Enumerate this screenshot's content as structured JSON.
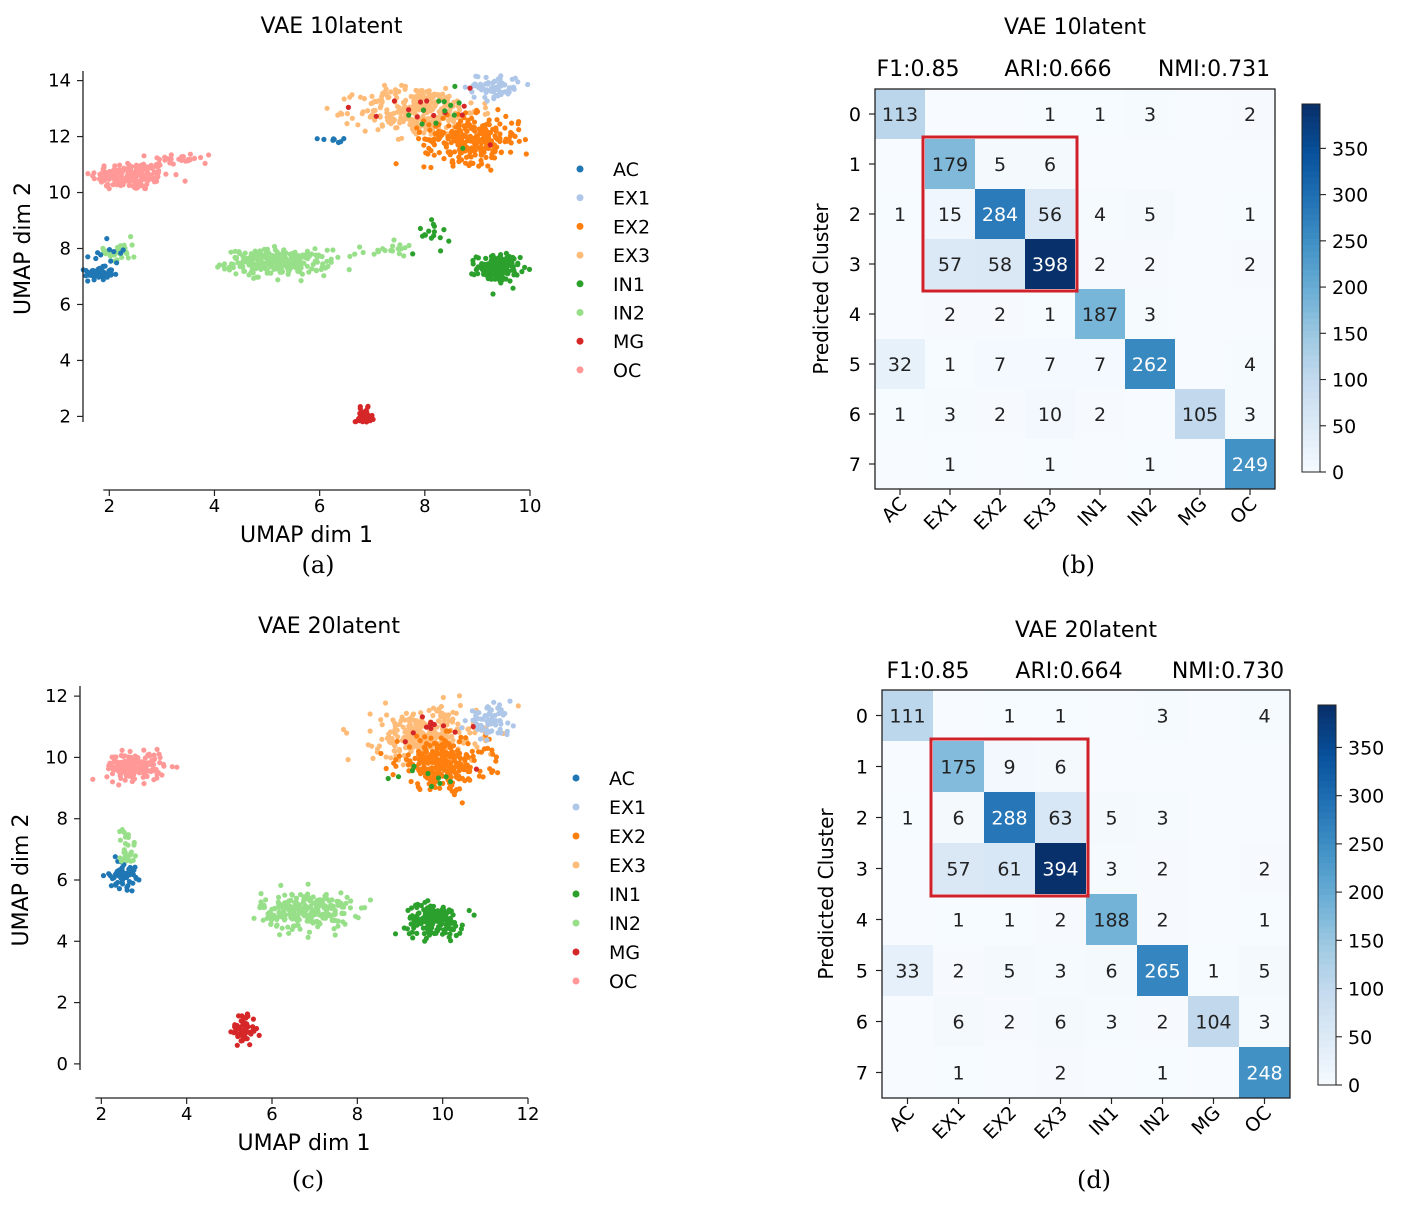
{
  "figure": {
    "panel_letters": [
      "(a)",
      "(b)",
      "(c)",
      "(d)"
    ]
  },
  "chart_data": [
    {
      "id": "a",
      "type": "scatter",
      "title": "VAE 10latent",
      "xlabel": "UMAP dim 1",
      "ylabel": "UMAP dim 2",
      "xlim": [
        1.5,
        10
      ],
      "ylim": [
        1.8,
        14.2
      ],
      "xticks": [
        2,
        4,
        6,
        8,
        10
      ],
      "yticks": [
        2,
        4,
        6,
        8,
        10,
        12,
        14
      ],
      "grid": false,
      "legend": "right",
      "series": [
        {
          "name": "AC",
          "color": "#1f77b4"
        },
        {
          "name": "EX1",
          "color": "#aec7e8"
        },
        {
          "name": "EX2",
          "color": "#ff7f0e"
        },
        {
          "name": "EX3",
          "color": "#ffbb78"
        },
        {
          "name": "IN1",
          "color": "#2ca02c"
        },
        {
          "name": "IN2",
          "color": "#98df8a"
        },
        {
          "name": "MG",
          "color": "#d62728"
        },
        {
          "name": "OC",
          "color": "#ff9896"
        }
      ],
      "clusters": [
        {
          "label": "OC",
          "cx": 2.4,
          "cy": 10.6,
          "sx": 0.5,
          "sy": 0.35,
          "n": 170
        },
        {
          "label": "OC",
          "cx": 3.4,
          "cy": 11.2,
          "sx": 0.4,
          "sy": 0.15,
          "n": 25
        },
        {
          "label": "AC",
          "cx": 1.8,
          "cy": 7.1,
          "sx": 0.18,
          "sy": 0.15,
          "n": 60
        },
        {
          "label": "IN2",
          "cx": 2.2,
          "cy": 7.9,
          "sx": 0.2,
          "sy": 0.3,
          "n": 30
        },
        {
          "label": "AC",
          "cx": 2.0,
          "cy": 7.8,
          "sx": 0.3,
          "sy": 0.4,
          "n": 12
        },
        {
          "label": "IN2",
          "cx": 5.2,
          "cy": 7.5,
          "sx": 0.65,
          "sy": 0.3,
          "n": 260
        },
        {
          "label": "IN2",
          "cx": 7.2,
          "cy": 8.0,
          "sx": 0.4,
          "sy": 0.2,
          "n": 20
        },
        {
          "label": "IN1",
          "cx": 9.4,
          "cy": 7.3,
          "sx": 0.27,
          "sy": 0.32,
          "n": 160
        },
        {
          "label": "IN1",
          "cx": 8.1,
          "cy": 8.6,
          "sx": 0.25,
          "sy": 0.5,
          "n": 16
        },
        {
          "label": "MG",
          "cx": 6.85,
          "cy": 1.9,
          "sx": 0.1,
          "sy": 0.25,
          "n": 60
        },
        {
          "label": "EX3",
          "cx": 7.9,
          "cy": 12.9,
          "sx": 0.75,
          "sy": 0.6,
          "n": 300
        },
        {
          "label": "EX2",
          "cx": 8.9,
          "cy": 11.9,
          "sx": 0.6,
          "sy": 0.55,
          "n": 280
        },
        {
          "label": "EX1",
          "cx": 9.3,
          "cy": 13.8,
          "sx": 0.35,
          "sy": 0.3,
          "n": 75
        },
        {
          "label": "MG",
          "cx": 8.0,
          "cy": 13.0,
          "sx": 0.8,
          "sy": 0.6,
          "n": 14
        },
        {
          "label": "IN1",
          "cx": 8.3,
          "cy": 12.6,
          "sx": 0.6,
          "sy": 0.6,
          "n": 12
        },
        {
          "label": "AC",
          "cx": 6.2,
          "cy": 11.9,
          "sx": 0.15,
          "sy": 0.1,
          "n": 8
        }
      ]
    },
    {
      "id": "b",
      "type": "heatmap",
      "title": "VAE 10latent",
      "metrics": {
        "f1": "F1:0.85",
        "ari": "ARI:0.666",
        "nmi": "NMI:0.731"
      },
      "ylabel": "Predicted Cluster",
      "row_labels": [
        "0",
        "1",
        "2",
        "3",
        "4",
        "5",
        "6",
        "7"
      ],
      "col_labels": [
        "AC",
        "EX1",
        "EX2",
        "EX3",
        "IN1",
        "IN2",
        "MG",
        "OC"
      ],
      "values": [
        [
          113,
          0,
          0,
          1,
          1,
          3,
          0,
          2
        ],
        [
          0,
          179,
          5,
          6,
          0,
          0,
          0,
          0
        ],
        [
          1,
          15,
          284,
          56,
          4,
          5,
          0,
          1
        ],
        [
          0,
          57,
          58,
          398,
          2,
          2,
          0,
          2
        ],
        [
          0,
          2,
          2,
          1,
          187,
          3,
          0,
          0
        ],
        [
          32,
          1,
          7,
          7,
          7,
          262,
          0,
          4
        ],
        [
          1,
          3,
          2,
          10,
          2,
          0,
          105,
          3
        ],
        [
          0,
          1,
          0,
          1,
          0,
          1,
          0,
          249
        ]
      ],
      "vmin": 0,
      "vmax": 398,
      "colorbar_ticks": [
        "0",
        "50",
        "100",
        "150",
        "200",
        "250",
        "300",
        "350"
      ],
      "highlight_box": {
        "rows": [
          1,
          3
        ],
        "cols": [
          1,
          3
        ],
        "color": "#d0202a"
      }
    },
    {
      "id": "c",
      "type": "scatter",
      "title": "VAE 20latent",
      "xlabel": "UMAP dim 1",
      "ylabel": "UMAP dim 2",
      "xlim": [
        1.5,
        12
      ],
      "ylim": [
        -0.2,
        12.2
      ],
      "xticks": [
        2,
        4,
        6,
        8,
        10,
        12
      ],
      "yticks": [
        0,
        2,
        4,
        6,
        8,
        10,
        12
      ],
      "grid": false,
      "legend": "right",
      "series": [
        {
          "name": "AC",
          "color": "#1f77b4"
        },
        {
          "name": "EX1",
          "color": "#aec7e8"
        },
        {
          "name": "EX2",
          "color": "#ff7f0e"
        },
        {
          "name": "EX3",
          "color": "#ffbb78"
        },
        {
          "name": "IN1",
          "color": "#2ca02c"
        },
        {
          "name": "IN2",
          "color": "#98df8a"
        },
        {
          "name": "MG",
          "color": "#d62728"
        },
        {
          "name": "OC",
          "color": "#ff9896"
        }
      ],
      "clusters": [
        {
          "label": "OC",
          "cx": 2.8,
          "cy": 9.7,
          "sx": 0.45,
          "sy": 0.3,
          "n": 170
        },
        {
          "label": "AC",
          "cx": 2.5,
          "cy": 6.2,
          "sx": 0.2,
          "sy": 0.3,
          "n": 60
        },
        {
          "label": "IN2",
          "cx": 2.6,
          "cy": 7.0,
          "sx": 0.15,
          "sy": 0.5,
          "n": 30
        },
        {
          "label": "IN2",
          "cx": 6.8,
          "cy": 5.0,
          "sx": 0.7,
          "sy": 0.4,
          "n": 250
        },
        {
          "label": "IN1",
          "cx": 9.8,
          "cy": 4.7,
          "sx": 0.45,
          "sy": 0.35,
          "n": 170
        },
        {
          "label": "MG",
          "cx": 5.35,
          "cy": 1.15,
          "sx": 0.18,
          "sy": 0.35,
          "n": 60
        },
        {
          "label": "EX3",
          "cx": 9.6,
          "cy": 10.7,
          "sx": 0.8,
          "sy": 0.6,
          "n": 300
        },
        {
          "label": "EX2",
          "cx": 10.0,
          "cy": 9.8,
          "sx": 0.7,
          "sy": 0.55,
          "n": 270
        },
        {
          "label": "EX1",
          "cx": 11.1,
          "cy": 11.2,
          "sx": 0.35,
          "sy": 0.3,
          "n": 70
        },
        {
          "label": "MG",
          "cx": 9.8,
          "cy": 10.9,
          "sx": 0.8,
          "sy": 0.5,
          "n": 12
        },
        {
          "label": "IN1",
          "cx": 9.5,
          "cy": 9.2,
          "sx": 0.6,
          "sy": 0.4,
          "n": 10
        }
      ]
    },
    {
      "id": "d",
      "type": "heatmap",
      "title": "VAE 20latent",
      "metrics": {
        "f1": "F1:0.85",
        "ari": "ARI:0.664",
        "nmi": "NMI:0.730"
      },
      "ylabel": "Predicted Cluster",
      "row_labels": [
        "0",
        "1",
        "2",
        "3",
        "4",
        "5",
        "6",
        "7"
      ],
      "col_labels": [
        "AC",
        "EX1",
        "EX2",
        "EX3",
        "IN1",
        "IN2",
        "MG",
        "OC"
      ],
      "values": [
        [
          111,
          0,
          1,
          1,
          0,
          3,
          0,
          4
        ],
        [
          0,
          175,
          9,
          6,
          0,
          0,
          0,
          0
        ],
        [
          1,
          6,
          288,
          63,
          5,
          3,
          0,
          0
        ],
        [
          0,
          57,
          61,
          394,
          3,
          2,
          0,
          2
        ],
        [
          0,
          1,
          1,
          2,
          188,
          2,
          0,
          1
        ],
        [
          33,
          2,
          5,
          3,
          6,
          265,
          1,
          5
        ],
        [
          0,
          6,
          2,
          6,
          3,
          2,
          104,
          3
        ],
        [
          0,
          1,
          0,
          2,
          0,
          1,
          0,
          248
        ]
      ],
      "vmin": 0,
      "vmax": 394,
      "colorbar_ticks": [
        "0",
        "50",
        "100",
        "150",
        "200",
        "250",
        "300",
        "350"
      ],
      "highlight_box": {
        "rows": [
          1,
          3
        ],
        "cols": [
          1,
          3
        ],
        "color": "#d0202a"
      }
    }
  ]
}
